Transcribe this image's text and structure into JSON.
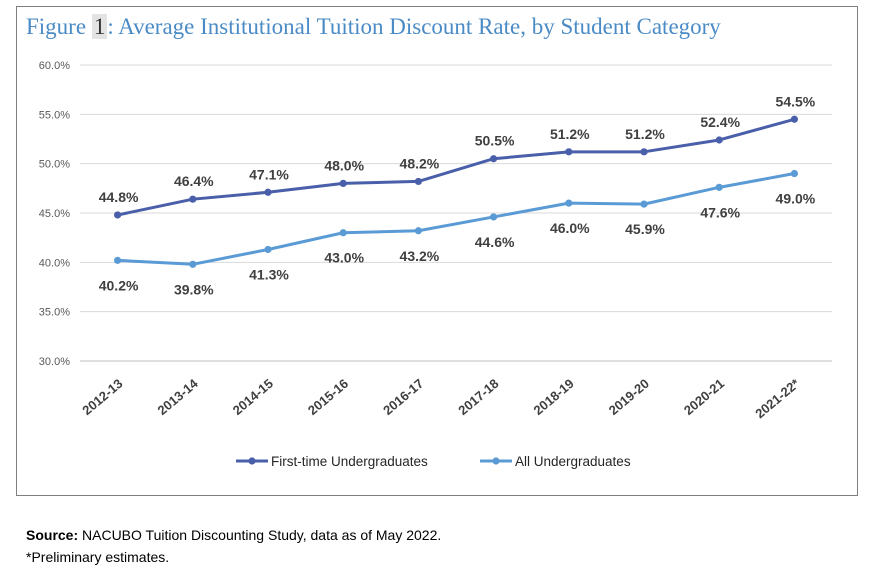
{
  "figure": {
    "title_prefix": "Figure ",
    "title_number": "1",
    "title_text": ": Average Institutional Tuition Discount Rate, by Student Category"
  },
  "footer": {
    "source_label": "Source:",
    "source_text": " NACUBO Tuition Discounting Study, data as of May 2022.",
    "note": "*Preliminary estimates."
  },
  "colors": {
    "first_time": "#4a5faa",
    "all": "#5b9bd5",
    "grid": "#d9d9d9",
    "axis_text": "#595959",
    "label_text": "#404040"
  },
  "chart_data": {
    "type": "line",
    "title": "Average Institutional Tuition Discount Rate, by Student Category",
    "xlabel": "",
    "ylabel": "",
    "ylim": [
      30,
      60
    ],
    "y_ticks": [
      "30.0%",
      "35.0%",
      "40.0%",
      "45.0%",
      "50.0%",
      "55.0%",
      "60.0%"
    ],
    "grid": true,
    "legend_position": "bottom",
    "categories": [
      "2012-13",
      "2013-14",
      "2014-15",
      "2015-16",
      "2016-17",
      "2017-18",
      "2018-19",
      "2019-20",
      "2020-21",
      "2021-22*"
    ],
    "series": [
      {
        "name": "First-time Undergraduates",
        "values": [
          44.8,
          46.4,
          47.1,
          48.0,
          48.2,
          50.5,
          51.2,
          51.2,
          52.4,
          54.5
        ],
        "labels": [
          "44.8%",
          "46.4%",
          "47.1%",
          "48.0%",
          "48.2%",
          "50.5%",
          "51.2%",
          "51.2%",
          "52.4%",
          "54.5%"
        ]
      },
      {
        "name": "All Undergraduates",
        "values": [
          40.2,
          39.8,
          41.3,
          43.0,
          43.2,
          44.6,
          46.0,
          45.9,
          47.6,
          49.0
        ],
        "labels": [
          "40.2%",
          "39.8%",
          "41.3%",
          "43.0%",
          "43.2%",
          "44.6%",
          "46.0%",
          "45.9%",
          "47.6%",
          "49.0%"
        ]
      }
    ]
  }
}
